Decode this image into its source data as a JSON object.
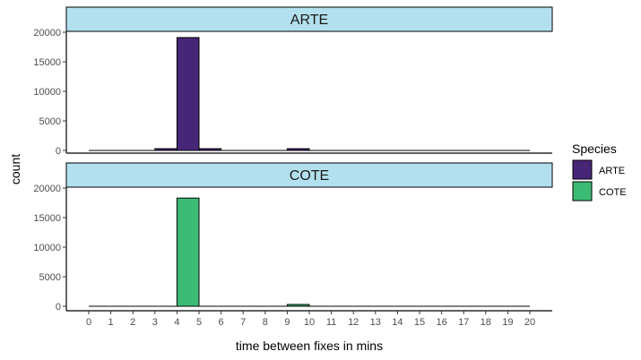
{
  "chart_data": {
    "type": "bar",
    "subtype": "faceted-histogram",
    "xlabel": "time between fixes in mins",
    "ylabel": "count",
    "x_ticks": [
      0,
      1,
      2,
      3,
      4,
      5,
      6,
      7,
      8,
      9,
      10,
      11,
      12,
      13,
      14,
      15,
      16,
      17,
      18,
      19,
      20
    ],
    "xlim": [
      -1,
      21
    ],
    "ylim": [
      0,
      20000
    ],
    "y_ticks": [
      0,
      5000,
      10000,
      15000,
      20000
    ],
    "legend": {
      "title": "Species",
      "position": "right",
      "entries": [
        {
          "label": "ARTE",
          "color": "#482677"
        },
        {
          "label": "COTE",
          "color": "#3cbb75"
        }
      ]
    },
    "strip_color": "#b2e0ee",
    "grid": false,
    "facets": [
      {
        "name": "ARTE",
        "color": "#482677",
        "bins": [
          {
            "x0": 3,
            "x1": 4,
            "count": 300
          },
          {
            "x0": 4,
            "x1": 5,
            "count": 19100
          },
          {
            "x0": 5,
            "x1": 6,
            "count": 300
          },
          {
            "x0": 9,
            "x1": 10,
            "count": 300
          }
        ]
      },
      {
        "name": "COTE",
        "color": "#3cbb75",
        "bins": [
          {
            "x0": 4,
            "x1": 5,
            "count": 18300
          },
          {
            "x0": 9,
            "x1": 10,
            "count": 300
          }
        ]
      }
    ]
  }
}
